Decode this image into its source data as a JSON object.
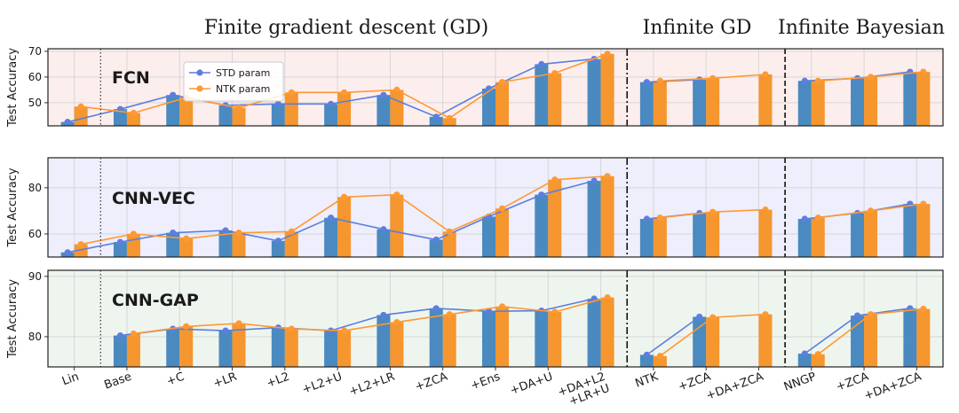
{
  "headers": [
    "Finite gradient descent (GD)",
    "Infinite GD",
    "Infinite Bayesian"
  ],
  "chart_data": {
    "type": "bar",
    "categories": [
      "Lin",
      "Base",
      "+C",
      "+LR",
      "+L2",
      "+L2+U",
      "+L2+LR",
      "+ZCA",
      "+Ens",
      "+DA+U",
      "+DA+L2\n+LR+U",
      "NTK",
      "+ZCA",
      "+DA+ZCA",
      "NNGP",
      "+ZCA",
      "+DA+ZCA"
    ],
    "ylabel": "Test Accuracy",
    "legend": {
      "position": "upper-left",
      "entries": [
        "STD param",
        "NTK param"
      ]
    },
    "colors": {
      "std": "#5b7fde",
      "ntk": "#ff9933",
      "std_bar": "#4a8ac0",
      "ntk_bar": "#f5962e"
    },
    "panels": [
      {
        "title": "FCN",
        "background": "#fdeeee",
        "ylim": [
          41,
          71
        ],
        "yticks": [
          50,
          60,
          70
        ],
        "series": [
          {
            "name": "STD param",
            "values": [
              42.5,
              47.5,
              53,
              49,
              49.5,
              49.5,
              53,
              44.5,
              55.5,
              65,
              67,
              58,
              59,
              null,
              58.5,
              59.5,
              62
            ]
          },
          {
            "name": "NTK param",
            "values": [
              48.5,
              46,
              52,
              48,
              54,
              54,
              55,
              44,
              58,
              61.5,
              69,
              58.5,
              59.5,
              61,
              58.5,
              60,
              62
            ]
          }
        ]
      },
      {
        "title": "CNN-VEC",
        "background": "#eeeefd",
        "ylim": [
          50,
          93
        ],
        "yticks": [
          60,
          80
        ],
        "series": [
          {
            "name": "STD param",
            "values": [
              52,
              56.5,
              60.5,
              61.5,
              57,
              67,
              62,
              57.5,
              67.5,
              77,
              83,
              66.5,
              69,
              null,
              66.5,
              69,
              73
            ]
          },
          {
            "name": "NTK param",
            "values": [
              55.5,
              60,
              58,
              60.5,
              61,
              76,
              77,
              61,
              71,
              83.5,
              85,
              67,
              69.5,
              70.5,
              67,
              70,
              73
            ]
          }
        ]
      },
      {
        "title": "CNN-GAP",
        "background": "#eef5ee",
        "ylim": [
          75,
          91
        ],
        "yticks": [
          80,
          90
        ],
        "series": [
          {
            "name": "STD param",
            "values": [
              null,
              80.2,
              81.3,
              81,
              81.5,
              81,
              83.6,
              84.7,
              84.2,
              84.3,
              86.3,
              77,
              83.3,
              null,
              77.2,
              83.5,
              84.7
            ]
          },
          {
            "name": "NTK param",
            "values": [
              null,
              80.5,
              81.7,
              82.2,
              81.3,
              81,
              82.4,
              83.7,
              85,
              84.1,
              86.5,
              76.8,
              83.2,
              83.7,
              77.1,
              83.7,
              84.6
            ]
          }
        ]
      }
    ]
  }
}
